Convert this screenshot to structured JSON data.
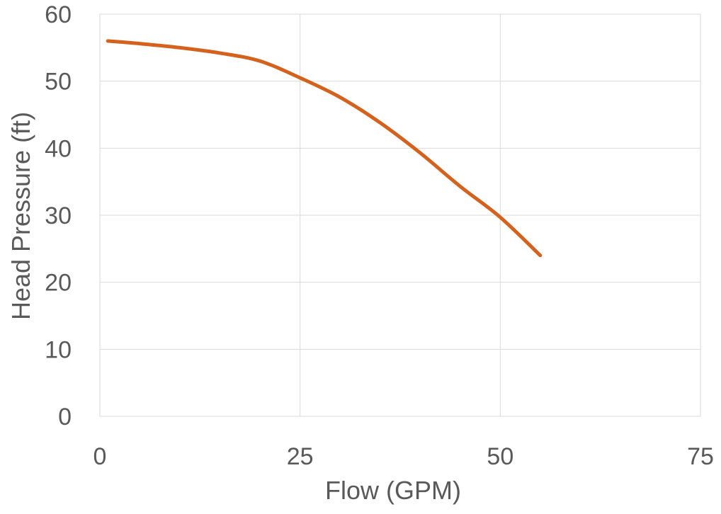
{
  "chart_data": {
    "type": "line",
    "title": "",
    "xlabel": "Flow (GPM)",
    "ylabel": "Head Pressure (ft)",
    "xlim": [
      0,
      75
    ],
    "ylim": [
      0,
      60
    ],
    "xticks": [
      0,
      25,
      50,
      75
    ],
    "yticks": [
      0,
      10,
      20,
      30,
      40,
      50,
      60
    ],
    "xtick_labels": [
      "0",
      "25",
      "50",
      "75"
    ],
    "ytick_labels": [
      "0",
      "10",
      "20",
      "30",
      "40",
      "50",
      "60"
    ],
    "grid": true,
    "legend": "none",
    "series": [
      {
        "color": "#d4621c",
        "x": [
          1,
          5,
          10,
          15,
          20,
          25,
          30,
          35,
          40,
          45,
          50,
          55
        ],
        "y": [
          56,
          55.6,
          55,
          54.2,
          53,
          50.5,
          47.6,
          43.8,
          39.3,
          34.3,
          29.7,
          24
        ]
      }
    ]
  }
}
